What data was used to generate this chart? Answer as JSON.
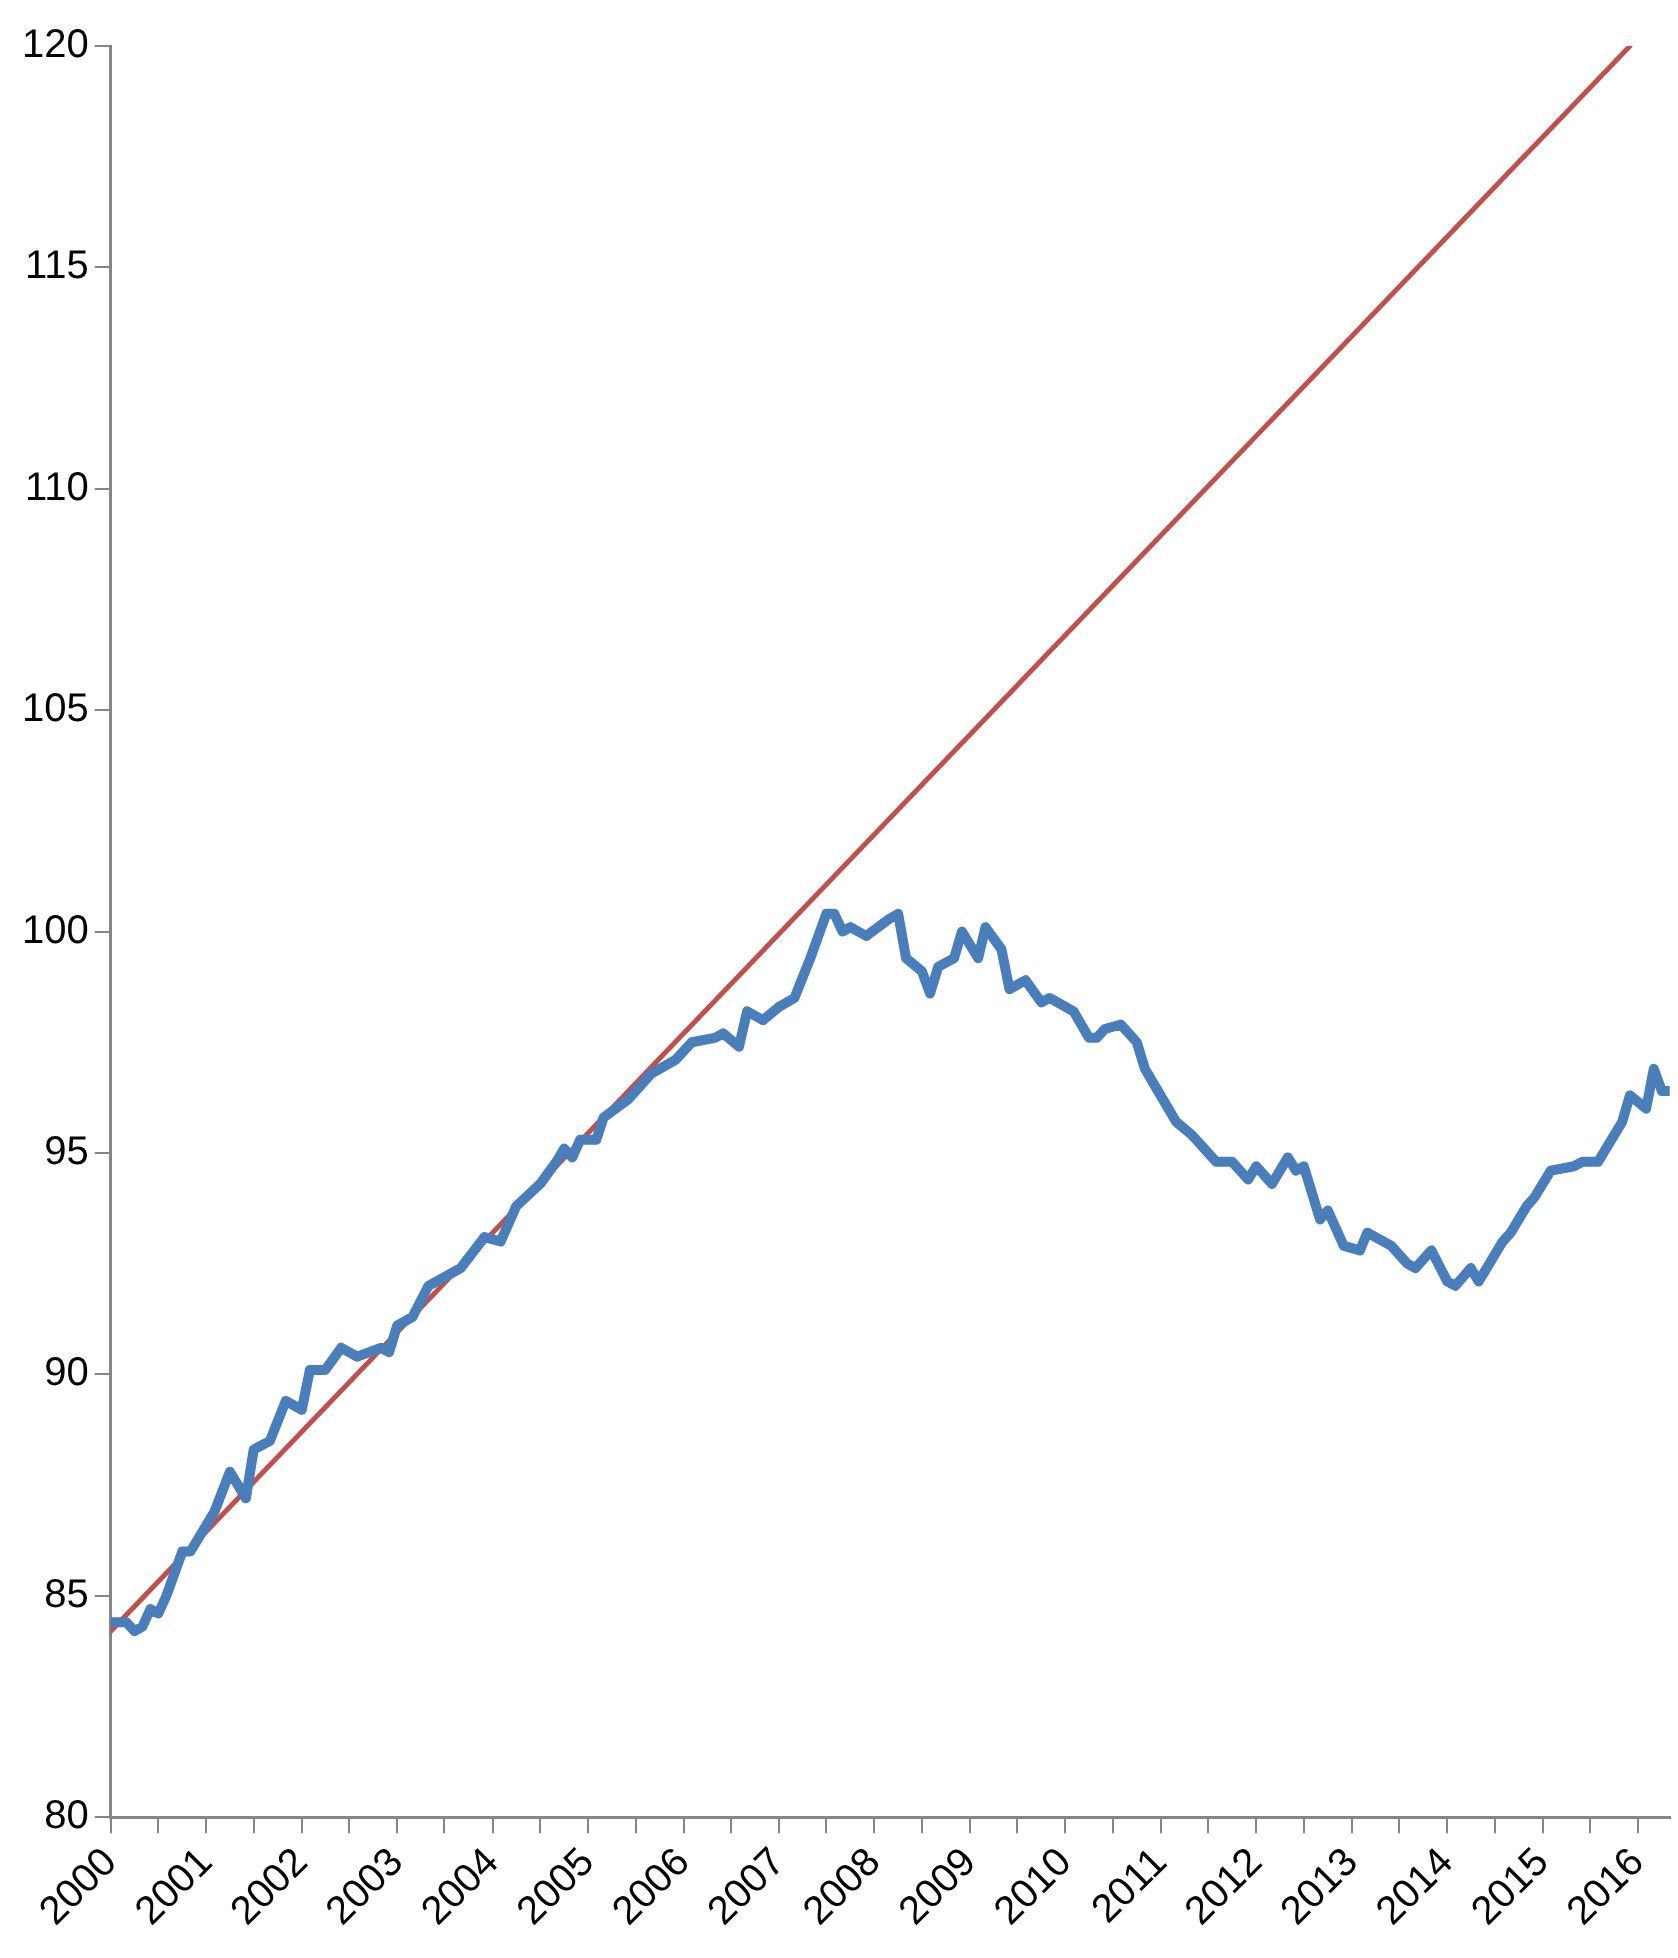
{
  "chart_data": {
    "type": "line",
    "x": [
      "2000-01",
      "2000-03",
      "2000-04",
      "2000-05",
      "2000-06",
      "2000-07",
      "2000-08",
      "2000-10",
      "2000-11",
      "2001-02",
      "2001-04",
      "2001-06",
      "2001-07",
      "2001-09",
      "2001-11",
      "2002-01",
      "2002-02",
      "2002-04",
      "2002-06",
      "2002-08",
      "2002-11",
      "2002-12",
      "2003-01",
      "2003-03",
      "2003-05",
      "2003-09",
      "2003-12",
      "2004-02",
      "2004-04",
      "2004-07",
      "2004-09",
      "2004-10",
      "2004-11",
      "2004-12",
      "2005-02",
      "2005-03",
      "2005-06",
      "2005-09",
      "2005-12",
      "2006-02",
      "2006-05",
      "2006-06",
      "2006-08",
      "2006-09",
      "2006-11",
      "2007-01",
      "2007-03",
      "2007-05",
      "2007-07",
      "2007-08",
      "2007-09",
      "2007-10",
      "2007-12",
      "2008-03",
      "2008-04",
      "2008-05",
      "2008-07",
      "2008-08",
      "2008-09",
      "2008-11",
      "2008-12",
      "2009-02",
      "2009-03",
      "2009-05",
      "2009-06",
      "2009-08",
      "2009-10",
      "2009-11",
      "2010-02",
      "2010-04",
      "2010-05",
      "2010-06",
      "2010-08",
      "2010-10",
      "2010-11",
      "2010-12",
      "2011-03",
      "2011-05",
      "2011-08",
      "2011-10",
      "2011-12",
      "2012-01",
      "2012-03",
      "2012-05",
      "2012-06",
      "2012-07",
      "2012-09",
      "2012-10",
      "2012-12",
      "2013-02",
      "2013-03",
      "2013-06",
      "2013-08",
      "2013-09",
      "2013-11",
      "2014-01",
      "2014-02",
      "2014-04",
      "2014-05",
      "2014-06",
      "2014-08",
      "2014-09",
      "2014-11",
      "2014-12",
      "2015-02",
      "2015-05",
      "2015-06",
      "2015-08",
      "2015-11",
      "2015-12",
      "2016-02",
      "2016-03",
      "2016-04",
      "2016-05"
    ],
    "series": [
      {
        "color": "#4a7ebb",
        "values": [
          84.4,
          84.4,
          84.2,
          84.3,
          84.7,
          84.6,
          85.0,
          86.0,
          86.0,
          86.9,
          87.8,
          87.2,
          88.3,
          88.5,
          89.4,
          89.2,
          90.1,
          90.1,
          90.6,
          90.4,
          90.6,
          90.5,
          91.1,
          91.3,
          92.0,
          92.4,
          93.1,
          93.0,
          93.8,
          94.3,
          94.8,
          95.1,
          94.9,
          95.3,
          95.3,
          95.8,
          96.2,
          96.8,
          97.1,
          97.5,
          97.6,
          97.7,
          97.4,
          98.2,
          98.0,
          98.3,
          98.5,
          99.4,
          100.4,
          100.4,
          100.0,
          100.1,
          99.9,
          100.3,
          100.4,
          99.4,
          99.1,
          98.6,
          99.2,
          99.4,
          100.0,
          99.4,
          100.1,
          99.6,
          98.7,
          98.9,
          98.4,
          98.5,
          98.2,
          97.6,
          97.6,
          97.8,
          97.9,
          97.5,
          96.9,
          96.6,
          95.7,
          95.4,
          94.8,
          94.8,
          94.4,
          94.7,
          94.3,
          94.9,
          94.6,
          94.7,
          93.5,
          93.7,
          92.9,
          92.8,
          93.2,
          92.9,
          92.5,
          92.4,
          92.8,
          92.1,
          92.0,
          92.4,
          92.1,
          92.4,
          93.0,
          93.2,
          93.8,
          94.0,
          94.6,
          94.7,
          94.8,
          94.8,
          95.7,
          96.3,
          96.0,
          96.9,
          96.4,
          96.4
        ]
      },
      {
        "type": "line",
        "color": "#c0504d",
        "x": [
          "2000-01",
          "2015-12"
        ],
        "values": [
          84.2,
          120
        ]
      }
    ],
    "xlim": [
      "2000-01",
      "2016-05"
    ],
    "xticks": [
      {
        "value": "2000-01",
        "label": "2000"
      },
      {
        "value": "2000-07",
        "label": null
      },
      {
        "value": "2001-01",
        "label": "2001"
      },
      {
        "value": "2001-07",
        "label": null
      },
      {
        "value": "2002-01",
        "label": "2002"
      },
      {
        "value": "2002-07",
        "label": null
      },
      {
        "value": "2003-01",
        "label": "2003"
      },
      {
        "value": "2003-07",
        "label": null
      },
      {
        "value": "2004-01",
        "label": "2004"
      },
      {
        "value": "2004-07",
        "label": null
      },
      {
        "value": "2005-01",
        "label": "2005"
      },
      {
        "value": "2005-07",
        "label": null
      },
      {
        "value": "2006-01",
        "label": "2006"
      },
      {
        "value": "2006-07",
        "label": null
      },
      {
        "value": "2007-01",
        "label": "2007"
      },
      {
        "value": "2007-07",
        "label": null
      },
      {
        "value": "2008-01",
        "label": "2008"
      },
      {
        "value": "2008-07",
        "label": null
      },
      {
        "value": "2009-01",
        "label": "2009"
      },
      {
        "value": "2009-07",
        "label": null
      },
      {
        "value": "2010-01",
        "label": "2010"
      },
      {
        "value": "2010-07",
        "label": null
      },
      {
        "value": "2011-01",
        "label": "2011"
      },
      {
        "value": "2011-07",
        "label": null
      },
      {
        "value": "2012-01",
        "label": "2012"
      },
      {
        "value": "2012-07",
        "label": null
      },
      {
        "value": "2013-01",
        "label": "2013"
      },
      {
        "value": "2013-07",
        "label": null
      },
      {
        "value": "2014-01",
        "label": "2014"
      },
      {
        "value": "2014-07",
        "label": null
      },
      {
        "value": "2015-01",
        "label": "2015"
      },
      {
        "value": "2015-07",
        "label": null
      },
      {
        "value": "2016-01",
        "label": "2016"
      }
    ],
    "ylim": [
      80,
      120
    ],
    "yticks": [
      80,
      85,
      90,
      95,
      100,
      105,
      110,
      115,
      120
    ],
    "grid": false,
    "legend": false,
    "marker": "none",
    "line_style": "solid"
  }
}
